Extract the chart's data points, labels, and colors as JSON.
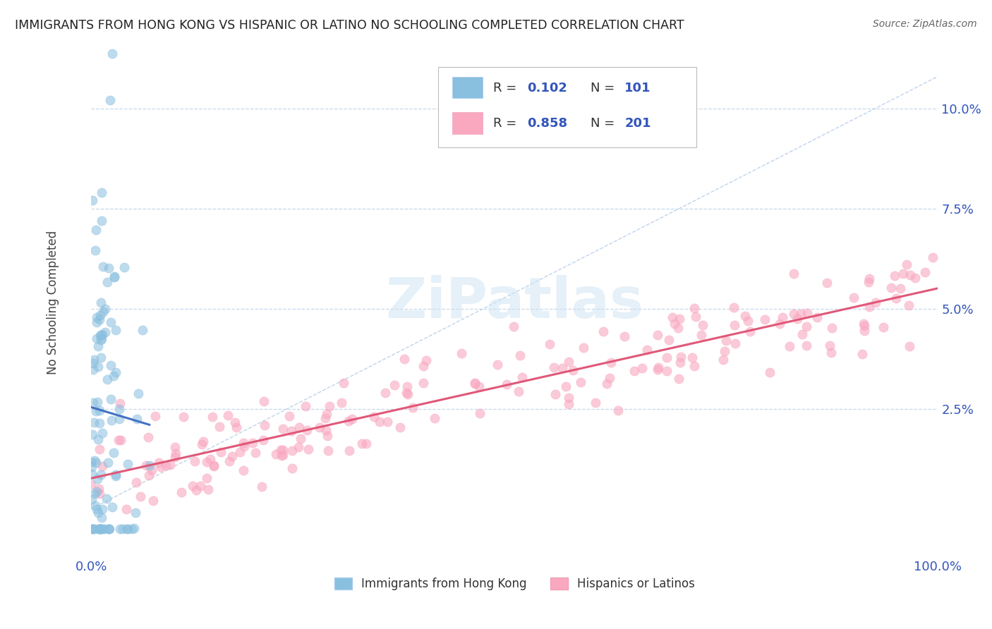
{
  "title": "IMMIGRANTS FROM HONG KONG VS HISPANIC OR LATINO NO SCHOOLING COMPLETED CORRELATION CHART",
  "source": "Source: ZipAtlas.com",
  "ylabel": "No Schooling Completed",
  "xlim": [
    0.0,
    1.0
  ],
  "ylim": [
    -0.012,
    0.115
  ],
  "yticks": [
    0.0,
    0.025,
    0.05,
    0.075,
    0.1
  ],
  "ytick_labels": [
    "",
    "2.5%",
    "5.0%",
    "7.5%",
    "10.0%"
  ],
  "xticks": [
    0.0,
    1.0
  ],
  "xtick_labels": [
    "0.0%",
    "100.0%"
  ],
  "color_blue": "#89bfdf",
  "color_pink": "#f9a8c0",
  "color_refline": "#b8cfe8",
  "color_regression_pink": "#e05878",
  "color_regression_blue": "#4472c4",
  "color_axis_labels": "#3355bb",
  "watermark_color": "#d0e4f4",
  "watermark_text": "ZiPatlas",
  "seed_blue": 7,
  "seed_pink": 13,
  "n_blue": 101,
  "n_pink": 201
}
